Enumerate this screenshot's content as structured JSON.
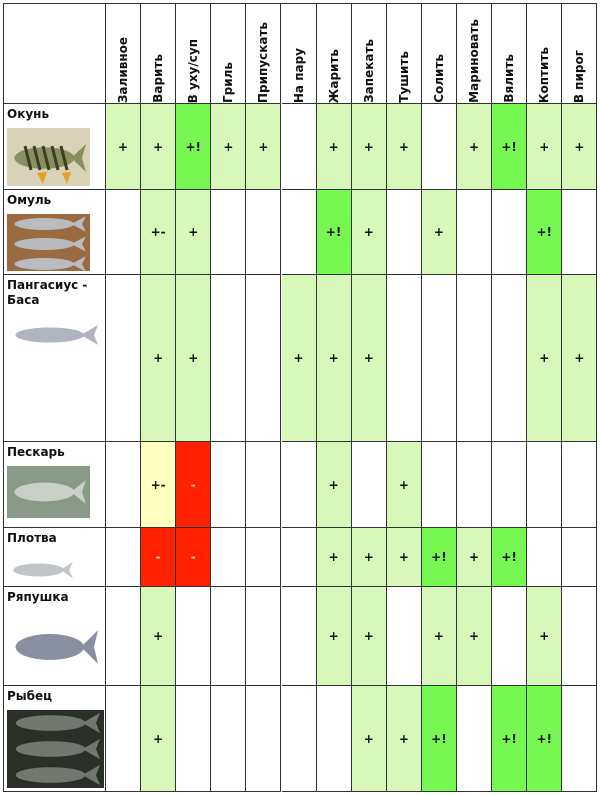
{
  "columns": [
    "Заливное",
    "Варить",
    "В уху/суп",
    "Гриль",
    "Припускать",
    "На пару",
    "Жарить",
    "Запекать",
    "Тушить",
    "Солить",
    "Мариновать",
    "Вялить",
    "Коптить",
    "В пирог"
  ],
  "colors": {
    "plus": "#d7f8b8",
    "recommended": "#77f752",
    "not_recommended": "#ff2200",
    "partial": "#ffffc0"
  },
  "rows": [
    {
      "name": "Окунь",
      "image": "perch-photo",
      "cells": [
        "+",
        "+",
        "+!",
        "+",
        "+",
        "",
        "+",
        "+",
        "+",
        "",
        "+",
        "+!",
        "+",
        "+"
      ]
    },
    {
      "name": "Омуль",
      "image": "omul-photo",
      "cells": [
        "",
        "+-",
        "+",
        "",
        "",
        "",
        "+!",
        "+",
        "",
        "+",
        "",
        "",
        "+!",
        ""
      ]
    },
    {
      "name": "Пангасиус - Баса",
      "image": "pangasius-photo",
      "cells": [
        "",
        "+",
        "+",
        "",
        "",
        "+",
        "+",
        "+",
        "",
        "",
        "",
        "",
        "+",
        "+"
      ]
    },
    {
      "name": "Пескарь",
      "image": "gudgeon-photo",
      "cells": [
        "",
        "+-",
        "-",
        "",
        "",
        "",
        "+",
        "",
        "+",
        "",
        "",
        "",
        "",
        ""
      ]
    },
    {
      "name": "Плотва",
      "image": "roach-photo",
      "cells": [
        "",
        "-",
        "-",
        "",
        "",
        "",
        "+",
        "+",
        "+",
        "+!",
        "+",
        "+!",
        "",
        ""
      ]
    },
    {
      "name": "Ряпушка",
      "image": "vendace-photo",
      "cells": [
        "",
        "+",
        "",
        "",
        "",
        "",
        "+",
        "+",
        "",
        "+",
        "+",
        "",
        "+",
        ""
      ]
    },
    {
      "name": "Рыбец",
      "image": "vimba-photo",
      "cells": [
        "",
        "+",
        "",
        "",
        "",
        "",
        "",
        "+",
        "+",
        "+!",
        "",
        "+!",
        "+!",
        ""
      ]
    }
  ]
}
